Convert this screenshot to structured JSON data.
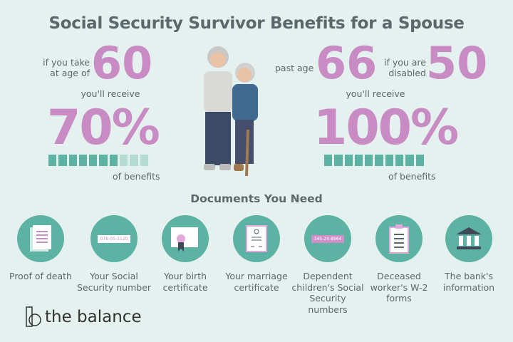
{
  "title": "Social Security Survivor Benefits for a Spouse",
  "left": {
    "condition_line1": "if you take",
    "condition_line2": "at age of",
    "age": "60",
    "receive_label": "you'll receive",
    "percent": "70%",
    "bar_fill_fraction": 0.7,
    "benefits_label": "of benefits"
  },
  "right": {
    "condition_label": "past age",
    "age": "66",
    "disabled_line1": "if you are",
    "disabled_line2": "disabled",
    "disabled_age": "50",
    "receive_label": "you'll receive",
    "percent": "100%",
    "bar_fill_fraction": 1.0,
    "benefits_label": "of benefits"
  },
  "documents": {
    "title": "Documents You Need",
    "items": [
      {
        "icon": "document-icon",
        "label": "Proof of death"
      },
      {
        "icon": "ssn-card-icon",
        "label": "Your Social Security number",
        "card_text": "078-05-1120"
      },
      {
        "icon": "certificate-icon",
        "label": "Your birth certificate"
      },
      {
        "icon": "marriage-certificate-icon",
        "label": "Your marriage certificate"
      },
      {
        "icon": "ssn-card-icon",
        "label": "Dependent children's Social Security numbers",
        "card_text": "345-24-8964"
      },
      {
        "icon": "clipboard-icon",
        "label": "Deceased worker's W-2 forms"
      },
      {
        "icon": "bank-icon",
        "label": "The bank's information"
      }
    ]
  },
  "brand": {
    "name": "the balance"
  },
  "colors": {
    "background": "#e5f1ee",
    "accent_pink": "#c98bc3",
    "teal": "#5db3a3",
    "text": "#5a676b"
  }
}
